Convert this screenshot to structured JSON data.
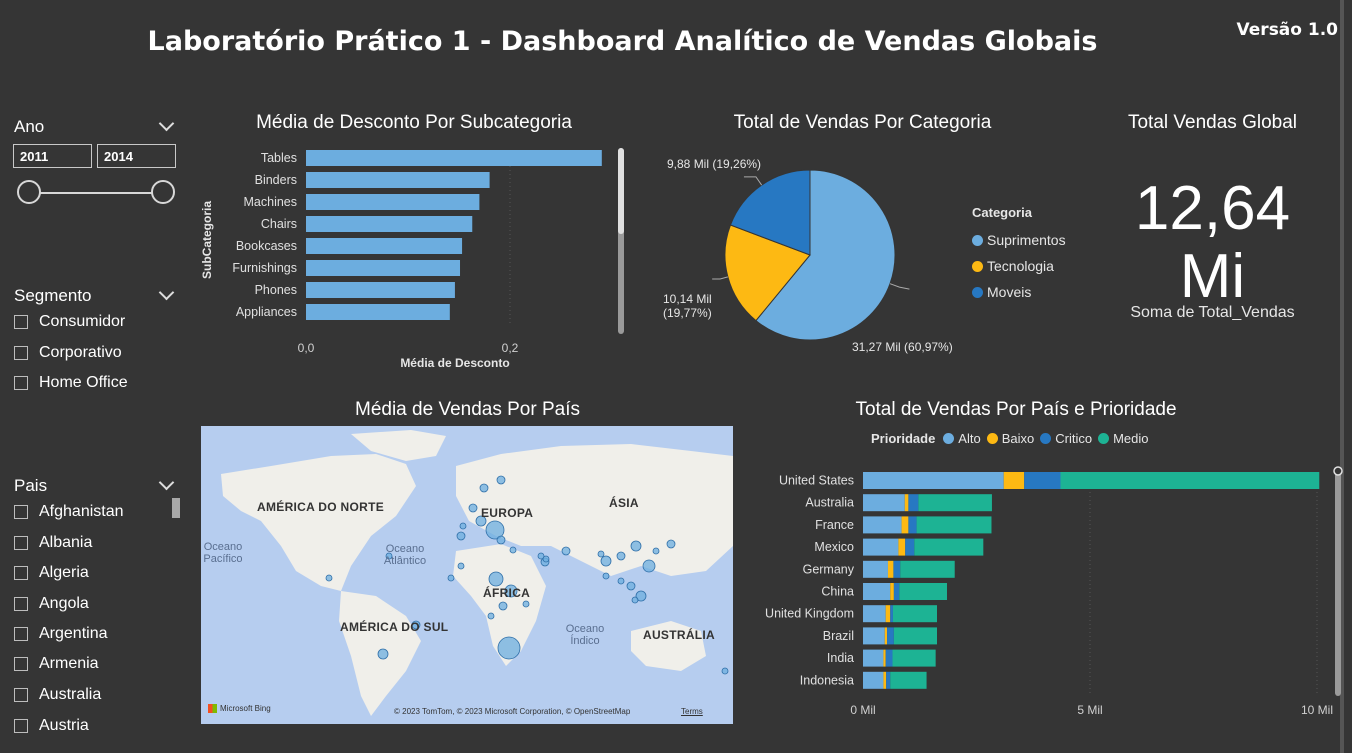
{
  "header": {
    "title": "Laboratório Prático 1 - Dashboard Analítico de Vendas Globais",
    "version": "Versão 1.0"
  },
  "filters": {
    "ano": {
      "label": "Ano",
      "from": "2011",
      "to": "2014"
    },
    "segmento": {
      "label": "Segmento",
      "items": [
        "Consumidor",
        "Corporativo",
        "Home Office"
      ]
    },
    "pais": {
      "label": "Pais",
      "items": [
        "Afghanistan",
        "Albania",
        "Algeria",
        "Angola",
        "Argentina",
        "Armenia",
        "Australia",
        "Austria"
      ]
    }
  },
  "kpi": {
    "title": "Total Vendas Global",
    "value": "12,64",
    "unit": "Mi",
    "caption": "Soma de Total_Vendas"
  },
  "chart_data": [
    {
      "id": "desconto",
      "type": "bar",
      "orientation": "horizontal",
      "title": "Média de Desconto Por Subcategoria",
      "xlabel": "Média de Desconto",
      "ylabel": "SubCategoria",
      "categories": [
        "Tables",
        "Binders",
        "Machines",
        "Chairs",
        "Bookcases",
        "Furnishings",
        "Phones",
        "Appliances"
      ],
      "values": [
        0.29,
        0.18,
        0.17,
        0.163,
        0.153,
        0.151,
        0.146,
        0.141
      ],
      "xlim": [
        0,
        0.3
      ],
      "xticks": [
        "0,0",
        "0,2"
      ],
      "xtick_values": [
        0,
        0.2
      ],
      "color": "#6caddf"
    },
    {
      "id": "categoria",
      "type": "pie",
      "title": "Total de Vendas Por Categoria",
      "legend_title": "Categoria",
      "legend_position": "right",
      "slices": [
        {
          "name": "Suprimentos",
          "value": 31.27,
          "label": "31,27 Mil (60,97%)",
          "color": "#6caddf"
        },
        {
          "name": "Tecnologia",
          "value": 10.14,
          "label_line1": "10,14 Mil",
          "label_line2": "(19,77%)",
          "color": "#fdb913"
        },
        {
          "name": "Moveis",
          "value": 9.88,
          "label": "9,88 Mil (19,26%)",
          "color": "#2778c2"
        }
      ]
    },
    {
      "id": "mapa",
      "type": "scatter",
      "title": "Média de Vendas Por País",
      "labels": {
        "na": "AMÉRICA DO NORTE",
        "eu": "EUROPA",
        "as": "ÁSIA",
        "af": "ÁFRICA",
        "sa": "AMÉRICA DO SUL",
        "au": "AUSTRÁLIA",
        "pac1": "Oceano",
        "pac2": "Pacífico",
        "atl1": "Oceano",
        "atl2": "Atlântico",
        "ind1": "Oceano",
        "ind2": "Índico"
      },
      "brand": "Microsoft Bing",
      "attribution": "© 2023 TomTom, © 2023 Microsoft Corporation, © OpenStreetMap",
      "terms": "Terms"
    },
    {
      "id": "pais_prioridade",
      "type": "bar",
      "orientation": "horizontal",
      "stacked": true,
      "title": "Total de Vendas Por País e Prioridade",
      "legend_title": "Prioridade",
      "legend_position": "top",
      "categories": [
        "United States",
        "Australia",
        "France",
        "Mexico",
        "Germany",
        "China",
        "United Kingdom",
        "Brazil",
        "India",
        "Indonesia"
      ],
      "series": [
        {
          "name": "Alto",
          "color": "#6caddf",
          "values": [
            3.1,
            0.92,
            0.85,
            0.78,
            0.55,
            0.6,
            0.5,
            0.48,
            0.45,
            0.45
          ]
        },
        {
          "name": "Baixo",
          "color": "#fdb913",
          "values": [
            0.45,
            0.08,
            0.15,
            0.15,
            0.12,
            0.08,
            0.1,
            0.05,
            0.05,
            0.06
          ]
        },
        {
          "name": "Critico",
          "color": "#2778c2",
          "values": [
            0.8,
            0.22,
            0.18,
            0.2,
            0.15,
            0.12,
            0.06,
            0.15,
            0.15,
            0.09
          ]
        },
        {
          "name": "Medio",
          "color": "#1db394",
          "values": [
            5.7,
            1.62,
            1.65,
            1.52,
            1.2,
            1.05,
            0.97,
            0.95,
            0.95,
            0.8
          ]
        }
      ],
      "xlim": [
        0,
        10
      ],
      "xticks": [
        "0 Mil",
        "5 Mil",
        "10 Mil"
      ],
      "xtick_values": [
        0,
        5,
        10
      ]
    }
  ]
}
